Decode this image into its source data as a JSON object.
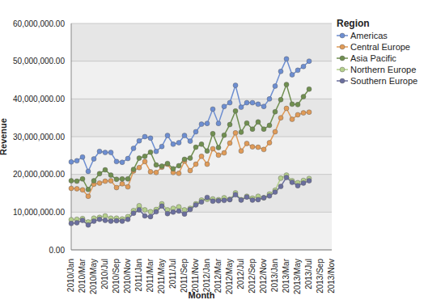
{
  "chart_data": {
    "type": "line",
    "x_label": "Month",
    "y_label": "Revenue",
    "legend_title": "Region",
    "legend": "right",
    "grid": true,
    "marker": "circle",
    "categories": [
      "2010/Jan",
      null,
      "2010/Mar",
      null,
      "2010/May",
      null,
      "2010/Jul",
      null,
      "2010/Sep",
      null,
      "2010/Nov",
      null,
      "2011/Jan",
      null,
      "2011/Mar",
      null,
      "2011/May",
      null,
      "2011/Jul",
      null,
      "2011/Sep",
      null,
      "2011/Nov",
      null,
      "2012/Jan",
      null,
      "2012/Mar",
      null,
      "2012/May",
      null,
      "2012/Jul",
      null,
      "2012/Sep",
      null,
      "2012/Nov",
      null,
      "2013/Jan",
      null,
      "2013/Mar",
      null,
      "2013/May",
      null,
      "2013/Jul",
      null,
      "2013/Sep",
      null,
      "2013/Nov"
    ],
    "ylim": [
      0,
      60000000
    ],
    "yticks": [
      {
        "value": 0,
        "label": "0.00"
      },
      {
        "value": 10000000,
        "label": "10,000,000.00"
      },
      {
        "value": 20000000,
        "label": "20,000,000.00"
      },
      {
        "value": 30000000,
        "label": "30,000,000.00"
      },
      {
        "value": 40000000,
        "label": "40,000,000.00"
      },
      {
        "value": 50000000,
        "label": "50,000,000.00"
      },
      {
        "value": 60000000,
        "label": "60,000,000.00"
      }
    ],
    "series": [
      {
        "name": "Americas",
        "color": "#6d8ed1",
        "values": [
          23300000,
          23600000,
          24600000,
          20800000,
          24100000,
          26100000,
          25800000,
          25800000,
          23400000,
          23200000,
          24200000,
          26900000,
          28900000,
          30000000,
          29600000,
          26100000,
          27400000,
          30300000,
          28000000,
          28400000,
          30300000,
          28800000,
          31300000,
          33300000,
          33500000,
          37300000,
          33500000,
          38000000,
          39000000,
          43600000,
          37800000,
          39000000,
          39000000,
          38600000,
          38000000,
          40000000,
          43400000,
          47300000,
          50600000,
          46400000,
          47600000,
          48600000,
          50000000,
          null,
          null,
          null,
          null
        ]
      },
      {
        "name": "Central Europe",
        "color": "#e09b58",
        "values": [
          16300000,
          16200000,
          15900000,
          14200000,
          17400000,
          17700000,
          18200000,
          18300000,
          16500000,
          17500000,
          16700000,
          20900000,
          21800000,
          23400000,
          20700000,
          20500000,
          21900000,
          22700000,
          20500000,
          20300000,
          23500000,
          21000000,
          22700000,
          24800000,
          22700000,
          26800000,
          25100000,
          25700000,
          28300000,
          31000000,
          26200000,
          28200000,
          27300000,
          27200000,
          26600000,
          28400000,
          31300000,
          35000000,
          37500000,
          34600000,
          35800000,
          36300000,
          36500000,
          null,
          null,
          null,
          null
        ]
      },
      {
        "name": "Asia Pacific",
        "color": "#708f50",
        "values": [
          18300000,
          18200000,
          18800000,
          16000000,
          18300000,
          20200000,
          21200000,
          19800000,
          18700000,
          18800000,
          18800000,
          21300000,
          24300000,
          24800000,
          25900000,
          22500000,
          22200000,
          22900000,
          21500000,
          22300000,
          24000000,
          24300000,
          27200000,
          28000000,
          26200000,
          30800000,
          27100000,
          30400000,
          33200000,
          36800000,
          31200000,
          33600000,
          32000000,
          33900000,
          32000000,
          33000000,
          36600000,
          39800000,
          43800000,
          38600000,
          38500000,
          40600000,
          42600000,
          null,
          null,
          null,
          null
        ]
      },
      {
        "name": "Northern Europe",
        "color": "#b5d08c",
        "values": [
          8000000,
          8100000,
          8300000,
          7400000,
          8400000,
          8600000,
          9000000,
          8400000,
          8400000,
          8200000,
          8800000,
          10400000,
          11700000,
          10600000,
          10100000,
          10700000,
          12200000,
          10600000,
          11000000,
          11400000,
          10600000,
          11000000,
          12200000,
          13200000,
          13400000,
          13500000,
          13300000,
          13800000,
          13400000,
          15100000,
          13300000,
          14200000,
          13700000,
          14200000,
          13800000,
          14800000,
          15800000,
          19000000,
          19800000,
          18300000,
          17800000,
          18400000,
          18900000,
          null,
          null,
          null,
          null
        ]
      },
      {
        "name": "Southern Europe",
        "color": "#6b6f9e",
        "values": [
          7000000,
          7200000,
          7800000,
          6600000,
          7600000,
          8100000,
          7800000,
          7600000,
          7700000,
          7600000,
          8100000,
          9700000,
          10600000,
          9000000,
          8800000,
          10100000,
          11600000,
          9600000,
          10000000,
          10300000,
          9500000,
          10700000,
          11900000,
          12700000,
          13900000,
          12900000,
          13000000,
          13100000,
          13300000,
          14600000,
          13200000,
          14000000,
          13200000,
          13300000,
          13800000,
          14300000,
          15300000,
          16800000,
          19200000,
          17900000,
          17000000,
          17700000,
          18300000,
          null,
          null,
          null,
          null
        ]
      }
    ]
  }
}
